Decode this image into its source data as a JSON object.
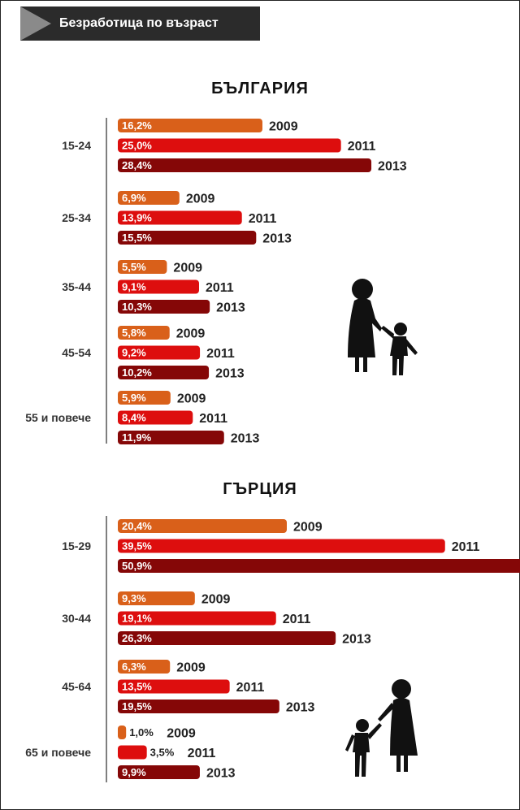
{
  "header": {
    "title": "Безработица по възраст"
  },
  "colors": {
    "2009": "#d9601a",
    "2011": "#dd0e0e",
    "2013": "#850707"
  },
  "chart_data": [
    {
      "type": "bar",
      "title": "БЪЛГАРИЯ",
      "categories": [
        "15-24",
        "25-34",
        "35-44",
        "45-54",
        "55 и повече"
      ],
      "series": [
        {
          "name": "2009",
          "values": [
            16.2,
            6.9,
            5.5,
            5.8,
            5.9
          ],
          "labels": [
            "16,2%",
            "6,9%",
            "5,5%",
            "5,8%",
            "5,9%"
          ]
        },
        {
          "name": "2011",
          "values": [
            25.0,
            13.9,
            9.1,
            9.2,
            8.4
          ],
          "labels": [
            "25,0%",
            "13,9%",
            "9,1%",
            "9,2%",
            "8,4%"
          ]
        },
        {
          "name": "2013",
          "values": [
            28.4,
            15.5,
            10.3,
            10.2,
            11.9
          ],
          "labels": [
            "28,4%",
            "15,5%",
            "10,3%",
            "10,2%",
            "11,9%"
          ]
        }
      ]
    },
    {
      "type": "bar",
      "title": "ГЪРЦИЯ",
      "categories": [
        "15-29",
        "30-44",
        "45-64",
        "65 и повече"
      ],
      "series": [
        {
          "name": "2009",
          "values": [
            20.4,
            9.3,
            6.3,
            1.0
          ],
          "labels": [
            "20,4%",
            "9,3%",
            "6,3%",
            "1,0%"
          ]
        },
        {
          "name": "2011",
          "values": [
            39.5,
            19.1,
            13.5,
            3.5
          ],
          "labels": [
            "39,5%",
            "19,1%",
            "13,5%",
            "3,5%"
          ]
        },
        {
          "name": "2013",
          "values": [
            50.9,
            26.3,
            19.5,
            9.9
          ],
          "labels": [
            "50,9%",
            "26,3%",
            "19,5%",
            "9,9%"
          ]
        }
      ]
    }
  ]
}
